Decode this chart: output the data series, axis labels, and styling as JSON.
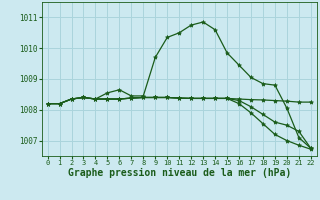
{
  "background_color": "#cce9f0",
  "grid_color": "#aad4dc",
  "line_color": "#1a5c1a",
  "title": "Graphe pression niveau de la mer (hPa)",
  "ylim": [
    1006.5,
    1011.5
  ],
  "xlim": [
    -0.5,
    22.5
  ],
  "yticks": [
    1007,
    1008,
    1009,
    1010,
    1011
  ],
  "xticks": [
    0,
    1,
    2,
    3,
    4,
    5,
    6,
    7,
    8,
    9,
    10,
    11,
    12,
    13,
    14,
    15,
    16,
    17,
    18,
    19,
    20,
    21,
    22
  ],
  "series": [
    [
      1008.2,
      1008.2,
      1008.35,
      1008.4,
      1008.35,
      1008.55,
      1008.65,
      1008.45,
      1008.45,
      1009.7,
      1010.35,
      1010.5,
      1010.75,
      1010.85,
      1010.6,
      1009.85,
      1009.45,
      1009.05,
      1008.85,
      1008.8,
      1008.05,
      1007.1,
      1006.75
    ],
    [
      1008.2,
      1008.2,
      1008.35,
      1008.4,
      1008.35,
      1008.35,
      1008.35,
      1008.38,
      1008.4,
      1008.4,
      1008.4,
      1008.38,
      1008.37,
      1008.37,
      1008.37,
      1008.37,
      1008.35,
      1008.33,
      1008.32,
      1008.3,
      1008.28,
      1008.25,
      1008.25
    ],
    [
      1008.2,
      1008.2,
      1008.35,
      1008.4,
      1008.35,
      1008.35,
      1008.35,
      1008.38,
      1008.4,
      1008.4,
      1008.4,
      1008.38,
      1008.37,
      1008.37,
      1008.37,
      1008.37,
      1008.3,
      1008.1,
      1007.85,
      1007.6,
      1007.5,
      1007.3,
      1006.75
    ],
    [
      1008.2,
      1008.2,
      1008.35,
      1008.4,
      1008.35,
      1008.35,
      1008.35,
      1008.38,
      1008.4,
      1008.4,
      1008.4,
      1008.38,
      1008.37,
      1008.37,
      1008.37,
      1008.37,
      1008.2,
      1007.9,
      1007.55,
      1007.2,
      1007.0,
      1006.85,
      1006.72
    ]
  ]
}
